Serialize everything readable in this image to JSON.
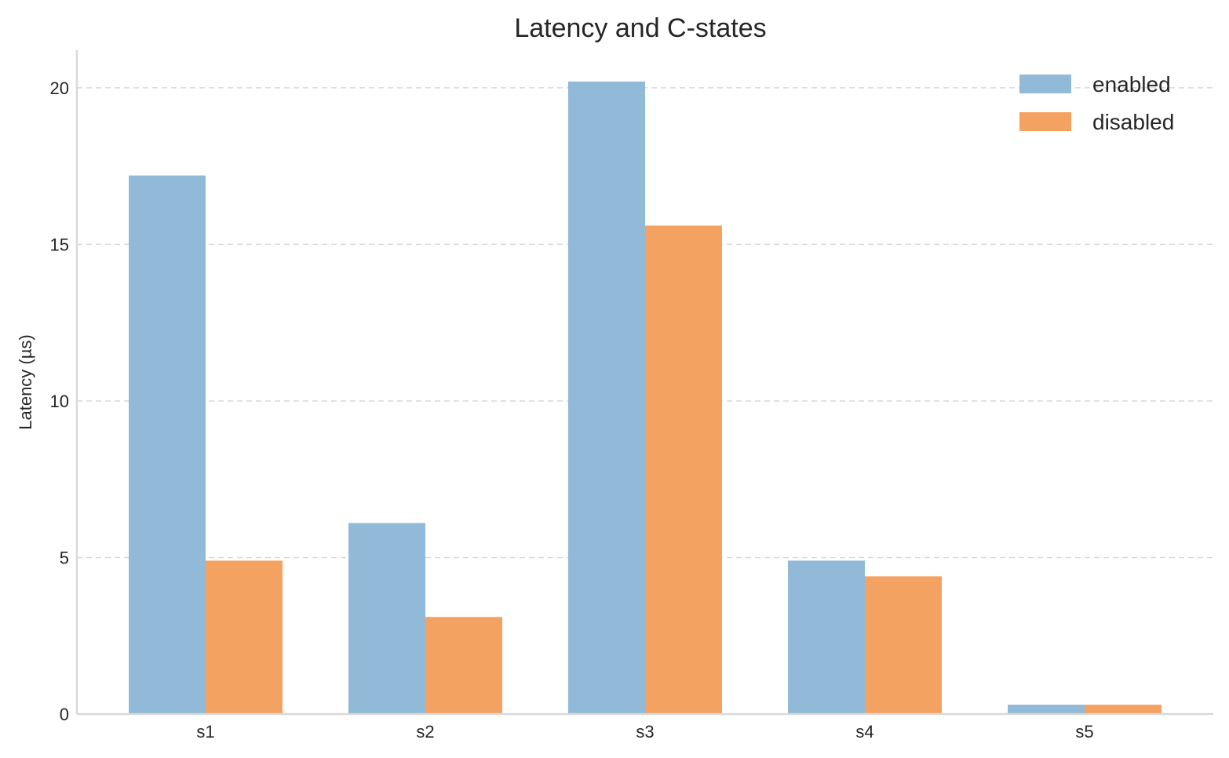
{
  "chart_data": {
    "type": "bar",
    "title": "Latency and C-states",
    "xlabel": "",
    "ylabel": "Latency (µs)",
    "categories": [
      "s1",
      "s2",
      "s3",
      "s4",
      "s5"
    ],
    "series": [
      {
        "name": "enabled",
        "color": "#90bad8",
        "values": [
          17.2,
          6.1,
          20.2,
          4.9,
          0.3
        ]
      },
      {
        "name": "disabled",
        "color": "#f4a261",
        "values": [
          4.9,
          3.1,
          15.6,
          4.4,
          0.3
        ]
      }
    ],
    "ylim": [
      0,
      21.2
    ],
    "yticks": [
      0,
      5,
      10,
      15,
      20
    ],
    "grid": "y",
    "legend": "top-right"
  }
}
